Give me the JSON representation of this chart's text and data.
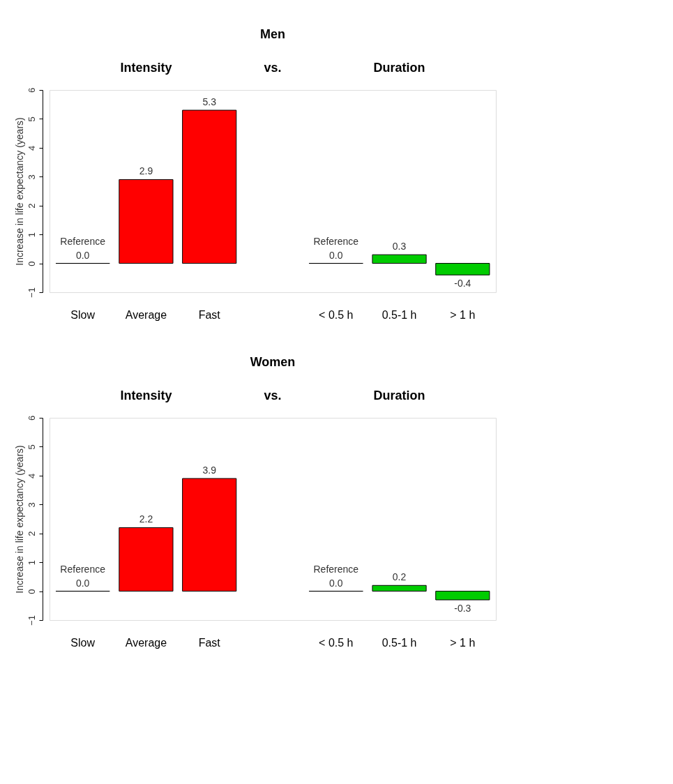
{
  "chart_data": [
    {
      "type": "bar",
      "title": "Men",
      "ylabel": "Increase in life expectancy (years)",
      "annotations": [
        "Intensity",
        "vs.",
        "Duration"
      ],
      "categories": [
        "Slow",
        "Average",
        "Fast",
        null,
        "< 0.5 h",
        "0.5-1 h",
        "> 1 h"
      ],
      "values": [
        0.0,
        2.9,
        5.3,
        null,
        0.0,
        0.3,
        -0.4
      ],
      "colors": [
        "#000000",
        "#ff0000",
        "#ff0000",
        null,
        "#000000",
        "#00cc00",
        "#00cc00"
      ],
      "value_labels": [
        "Reference\n0.0",
        "2.9",
        "5.3",
        null,
        "Reference\n0.0",
        "0.3",
        "-0.4"
      ],
      "ylim": [
        -1,
        6
      ],
      "yticks": [
        -1,
        0,
        1,
        2,
        3,
        4,
        5,
        6
      ],
      "grid": false
    },
    {
      "type": "bar",
      "title": "Women",
      "ylabel": "Increase in life expectancy (years)",
      "annotations": [
        "Intensity",
        "vs.",
        "Duration"
      ],
      "categories": [
        "Slow",
        "Average",
        "Fast",
        null,
        "< 0.5 h",
        "0.5-1 h",
        "> 1 h"
      ],
      "values": [
        0.0,
        2.2,
        3.9,
        null,
        0.0,
        0.2,
        -0.3
      ],
      "colors": [
        "#000000",
        "#ff0000",
        "#ff0000",
        null,
        "#000000",
        "#00cc00",
        "#00cc00"
      ],
      "value_labels": [
        "Reference\n0.0",
        "2.2",
        "3.9",
        null,
        "Reference\n0.0",
        "0.2",
        "-0.3"
      ],
      "ylim": [
        -1,
        6
      ],
      "yticks": [
        -1,
        0,
        1,
        2,
        3,
        4,
        5,
        6
      ],
      "grid": false
    }
  ]
}
